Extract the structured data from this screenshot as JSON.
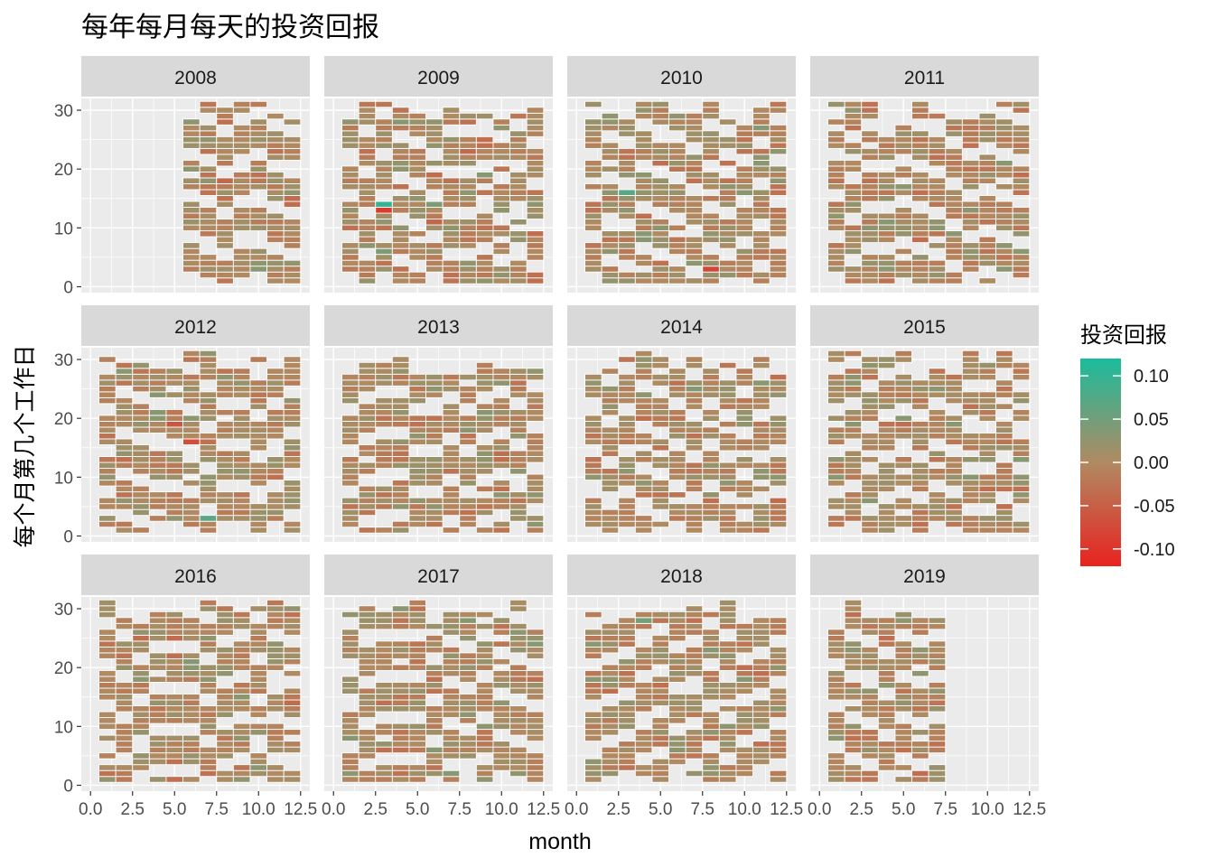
{
  "chart_data": {
    "type": "heatmap",
    "title": "每年每月每天的投资回报",
    "xlabel": "month",
    "ylabel": "每个月第几个工作日",
    "xlim": [
      0,
      12.5
    ],
    "ylim": [
      0,
      31
    ],
    "x_ticks": [
      "0.0",
      "2.5",
      "5.0",
      "7.5",
      "10.0",
      "12.5"
    ],
    "y_ticks": [
      "0",
      "10",
      "20",
      "30"
    ],
    "grid": true,
    "layout": "facet_wrap 4 columns x 3 rows",
    "facets": [
      {
        "label": "2008",
        "year": 2008,
        "months": [
          6,
          7,
          8,
          9,
          10,
          11,
          12
        ]
      },
      {
        "label": "2009",
        "year": 2009,
        "months": [
          1,
          2,
          3,
          4,
          5,
          6,
          7,
          8,
          9,
          10,
          11,
          12
        ]
      },
      {
        "label": "2010",
        "year": 2010,
        "months": [
          1,
          2,
          3,
          4,
          5,
          6,
          7,
          8,
          9,
          10,
          11,
          12
        ]
      },
      {
        "label": "2011",
        "year": 2011,
        "months": [
          1,
          2,
          3,
          4,
          5,
          6,
          7,
          8,
          9,
          10,
          11,
          12
        ]
      },
      {
        "label": "2012",
        "year": 2012,
        "months": [
          1,
          2,
          3,
          4,
          5,
          6,
          7,
          8,
          9,
          10,
          11,
          12
        ]
      },
      {
        "label": "2013",
        "year": 2013,
        "months": [
          1,
          2,
          3,
          4,
          5,
          6,
          7,
          8,
          9,
          10,
          11,
          12
        ]
      },
      {
        "label": "2014",
        "year": 2014,
        "months": [
          1,
          2,
          3,
          4,
          5,
          6,
          7,
          8,
          9,
          10,
          11,
          12
        ]
      },
      {
        "label": "2015",
        "year": 2015,
        "months": [
          1,
          2,
          3,
          4,
          5,
          6,
          7,
          8,
          9,
          10,
          11,
          12
        ]
      },
      {
        "label": "2016",
        "year": 2016,
        "months": [
          1,
          2,
          3,
          4,
          5,
          6,
          7,
          8,
          9,
          10,
          11,
          12
        ]
      },
      {
        "label": "2017",
        "year": 2017,
        "months": [
          1,
          2,
          3,
          4,
          5,
          6,
          7,
          8,
          9,
          10,
          11,
          12
        ]
      },
      {
        "label": "2018",
        "year": 2018,
        "months": [
          1,
          2,
          3,
          4,
          5,
          6,
          7,
          8,
          9,
          10,
          11,
          12
        ]
      },
      {
        "label": "2019",
        "year": 2019,
        "months": [
          1,
          2,
          3,
          4,
          5,
          6,
          7
        ]
      }
    ],
    "legend": {
      "title": "投资回报",
      "position": "right",
      "breaks": [
        "0.10",
        "0.05",
        "0.00",
        "-0.05",
        "-0.10"
      ],
      "limits": [
        -0.12,
        0.12
      ],
      "colors": {
        "high": "#1abc9c",
        "mid": "#b08a62",
        "low": "#e8231f"
      }
    },
    "notable_values": [
      {
        "year": 2009,
        "month": 3,
        "day": 13,
        "value": -0.09
      },
      {
        "year": 2009,
        "month": 3,
        "day": 14,
        "value": 0.1
      },
      {
        "year": 2010,
        "month": 3,
        "day": 16,
        "value": 0.07
      },
      {
        "year": 2010,
        "month": 8,
        "day": 3,
        "value": -0.08
      },
      {
        "year": 2012,
        "month": 7,
        "day": 3,
        "value": 0.07
      },
      {
        "year": 2012,
        "month": 7,
        "day": 4,
        "value": 0.06
      },
      {
        "year": 2012,
        "month": 5,
        "day": 19,
        "value": -0.06
      },
      {
        "year": 2012,
        "month": 6,
        "day": 16,
        "value": -0.07
      },
      {
        "year": 2013,
        "month": 1,
        "day": 1,
        "value": 0.05
      },
      {
        "year": 2018,
        "month": 4,
        "day": 28,
        "value": 0.05
      },
      {
        "year": 2019,
        "month": 7,
        "day": 13,
        "value": 0.02
      }
    ]
  },
  "colors": {
    "panel_bg": "#ebebeb",
    "grid_major": "#ffffff",
    "strip_bg": "#d9d9d9",
    "tile_border": "#ffffff"
  }
}
